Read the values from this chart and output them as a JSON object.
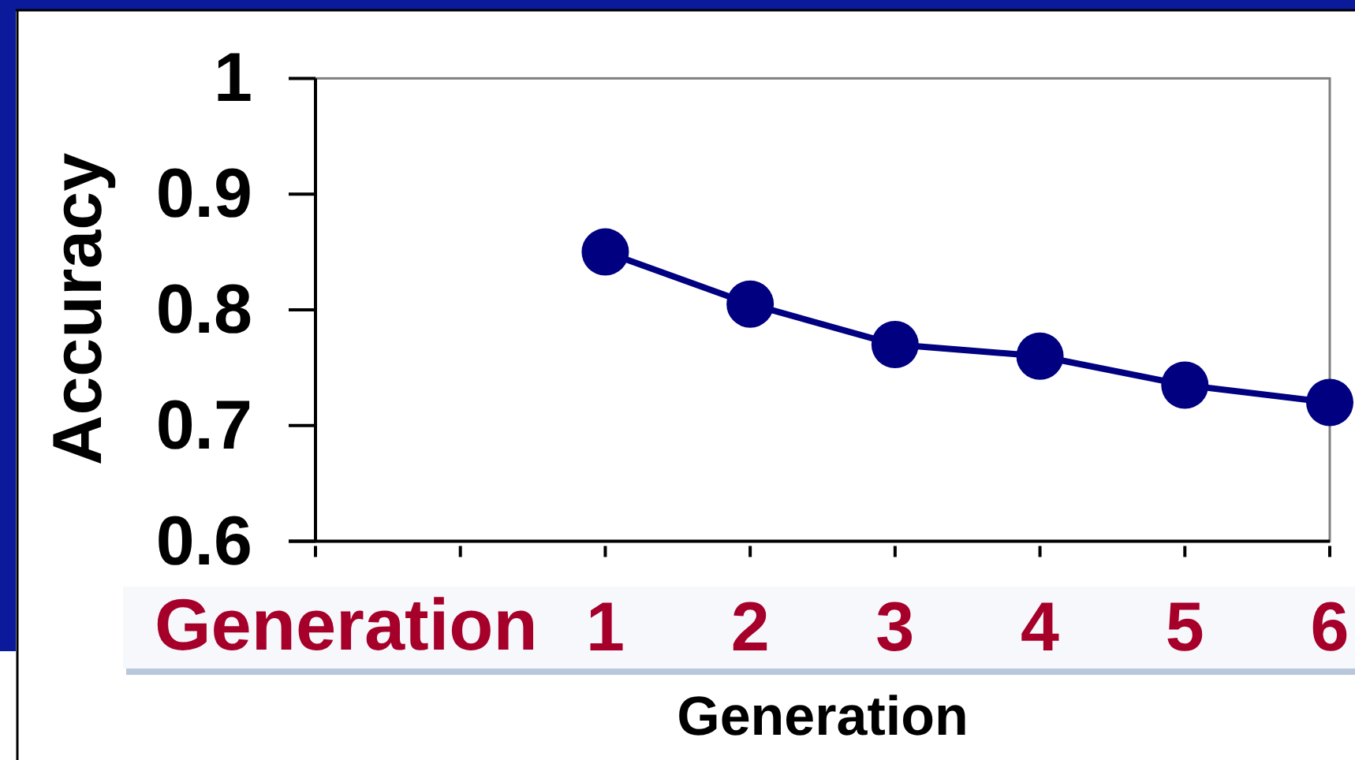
{
  "chart_data": {
    "type": "line",
    "ylabel": "Accuracy",
    "xlabel": "Generation",
    "annotations": [
      "Generation"
    ],
    "categories": [
      null,
      null,
      "1",
      "2",
      "3",
      "4",
      "5",
      "6"
    ],
    "series": [
      {
        "color": "#000080",
        "values": [
          null,
          null,
          0.85,
          0.805,
          0.77,
          0.76,
          0.735,
          0.72
        ]
      }
    ],
    "ylim": [
      0.6,
      1
    ],
    "yticks": [
      0.6,
      0.7,
      0.8,
      0.9,
      1
    ],
    "marker": "circle",
    "line_style": "solid"
  }
}
